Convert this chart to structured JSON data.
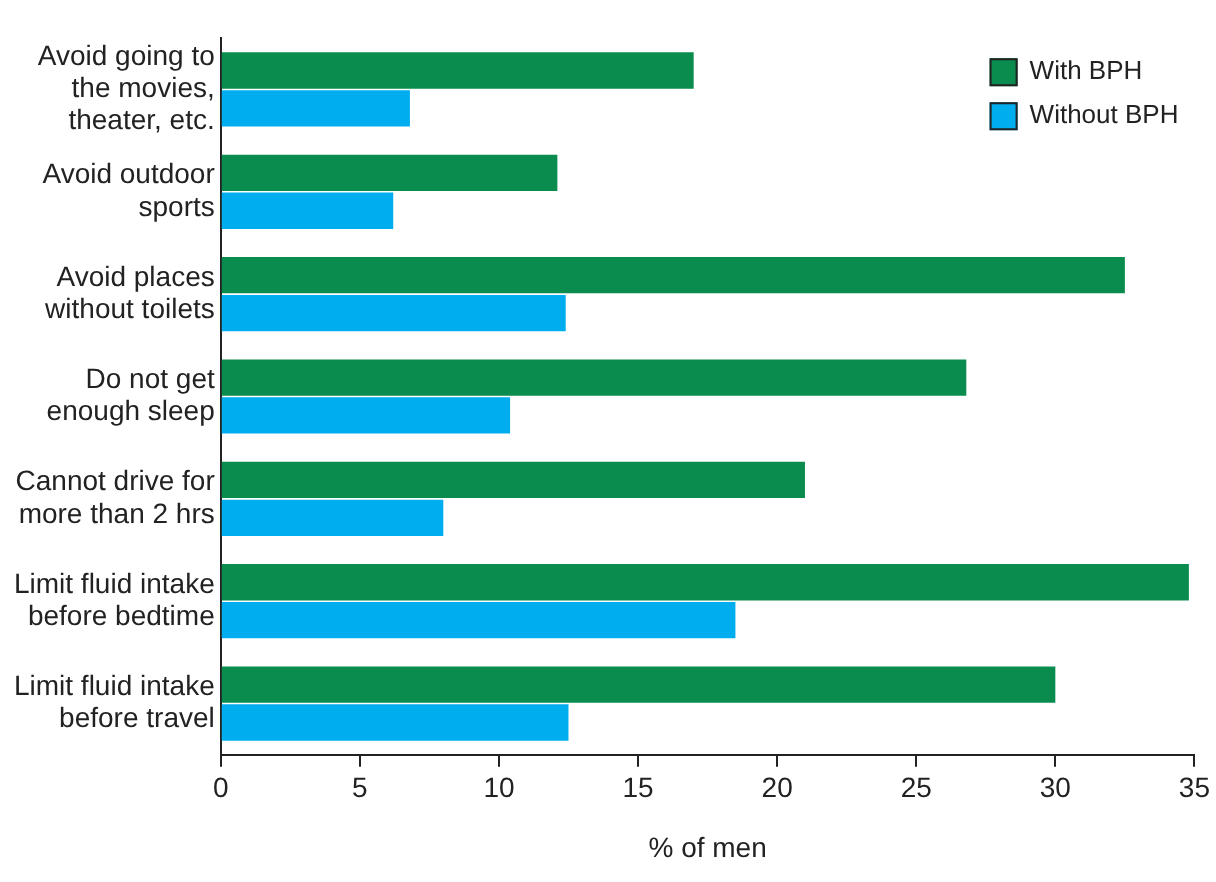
{
  "chart_data": {
    "type": "bar",
    "orientation": "horizontal",
    "xlabel": "% of men",
    "categories": [
      "Avoid going to the movies, theater, etc.",
      "Avoid outdoor sports",
      "Avoid places without toilets",
      "Do not get enough sleep",
      "Cannot drive for more than 2 hrs",
      "Limit fluid intake before bedtime",
      "Limit fluid intake before travel"
    ],
    "series": [
      {
        "name": "With BPH",
        "color": "#0a8c4e",
        "values": [
          17,
          12.1,
          32.5,
          26.8,
          21,
          34.8,
          30
        ]
      },
      {
        "name": "Without BPH",
        "color": "#00aeef",
        "values": [
          6.8,
          6.2,
          12.4,
          10.4,
          8,
          18.5,
          12.5
        ]
      }
    ],
    "xlim": [
      0,
      35
    ],
    "xticks": [
      0,
      5,
      10,
      15,
      20,
      25,
      30,
      35
    ],
    "grid": false,
    "legend": "top right"
  }
}
